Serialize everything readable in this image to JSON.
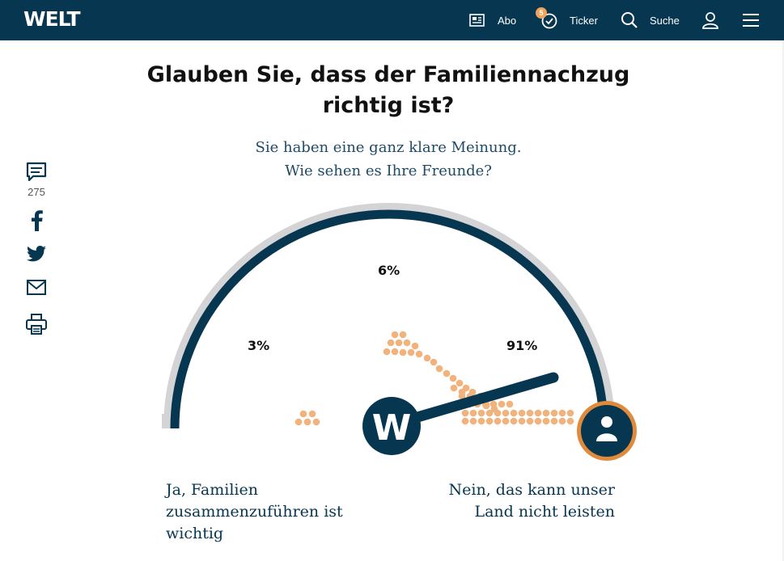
{
  "header": {
    "logo": "WELT",
    "abo_label": "Abo",
    "ticker_label": "Ticker",
    "ticker_badge": "5",
    "search_label": "Suche"
  },
  "poll": {
    "question": "Glauben Sie, dass der Familiennachzug richtig ist?",
    "subtitle_line1": "Sie haben eine ganz klare Meinung.",
    "subtitle_line2": "Wie sehen es Ihre Freunde?",
    "results": {
      "yes_percent": "3%",
      "neutral_percent": "6%",
      "no_percent": "91%"
    },
    "answer_yes": "Ja, Familien zusammenzuführen ist wichtig",
    "answer_no": "Nein, das kann unser Land nicht leisten",
    "center_badge": "W"
  },
  "share": {
    "comment_count": "275",
    "icons": [
      "comment-icon",
      "facebook-icon",
      "twitter-icon",
      "mail-icon",
      "print-icon"
    ]
  },
  "colors": {
    "navy": "#063650",
    "arc_gray": "#d4d4d6",
    "dot_orange": "#f2b27c",
    "accent_orange": "#e08a3c"
  }
}
